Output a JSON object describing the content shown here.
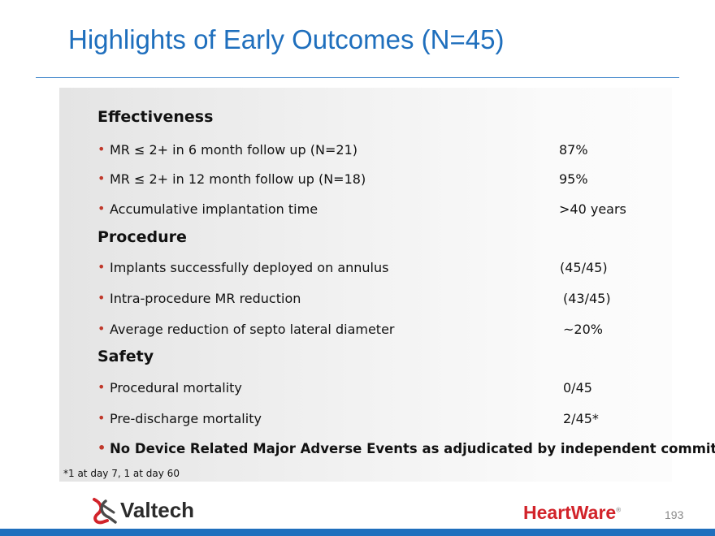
{
  "title": "Highlights of Early Outcomes (N=45)",
  "sections": [
    {
      "heading": "Effectiveness",
      "items": [
        {
          "label": "MR ≤ 2+ in 6 month follow up (N=21)",
          "value": "87%"
        },
        {
          "label": "MR ≤ 2+ in 12 month follow up (N=18)",
          "value": "95%"
        },
        {
          "label": "Accumulative implantation time",
          "value": ">40 years"
        }
      ]
    },
    {
      "heading": "Procedure",
      "items": [
        {
          "label": "Implants successfully deployed on annulus",
          "value": "(45/45)"
        },
        {
          "label": "Intra-procedure MR reduction",
          "value": "(43/45)"
        },
        {
          "label": "Average reduction of septo lateral diameter",
          "value": "~20%"
        }
      ]
    },
    {
      "heading": "Safety",
      "items": [
        {
          "label": "Procedural mortality",
          "value": "0/45"
        },
        {
          "label": "Pre-discharge mortality",
          "value": "2/45*"
        },
        {
          "label": "No Device Related Major Adverse Events as adjudicated by independent committee",
          "value": ""
        }
      ]
    }
  ],
  "bullet": "•",
  "footnote": "*1 at day 7, 1 at day 60",
  "logos": {
    "valtech": "Valtech",
    "heartware": "HeartWare",
    "heartware_mark": "®"
  },
  "page_number": "193",
  "colors": {
    "title": "#1f6fbd",
    "bullet": "#c0392b",
    "heartware": "#d2232a",
    "bar": "#1f6fbd"
  }
}
